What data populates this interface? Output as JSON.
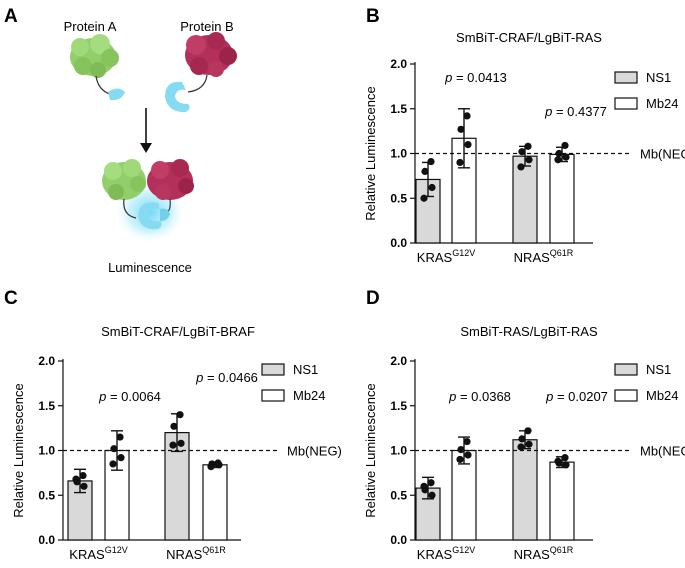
{
  "colors": {
    "ns1_fill": "#d9d9d9",
    "mb24_fill": "#ffffff",
    "protein_a": "#92cf6a",
    "protein_b": "#b3305a",
    "lgbit": "#86daf2",
    "glow": "#59d2f2"
  },
  "schematic": {
    "panel_letter": "A",
    "protein_a_label": "Protein A",
    "protein_b_label": "Protein B",
    "result_label": "Luminescence",
    "icons": [
      "protein-a-icon",
      "protein-b-icon",
      "smbit-tag-icon",
      "lgbit-tag-icon",
      "arrow-down-icon",
      "luminescence-glow-icon"
    ]
  },
  "chart_data": [
    {
      "panel": "B",
      "type": "bar",
      "title": "SmBiT-CRAF/LgBiT-RAS",
      "ylabel": "Relative Luminescence",
      "ylim": [
        0,
        2.0
      ],
      "yticks": [
        "0.0",
        "0.5",
        "1.0",
        "1.5",
        "2.0"
      ],
      "categories": [
        "KRAS",
        "NRAS"
      ],
      "category_superscripts": [
        "G12V",
        "Q61R"
      ],
      "series": [
        {
          "name": "NS1",
          "values": [
            0.71,
            0.97
          ],
          "errors": [
            0.19,
            0.11
          ],
          "points": [
            [
              0.91,
              0.8,
              0.62,
              0.5
            ],
            [
              1.08,
              1.02,
              0.93,
              0.85
            ]
          ]
        },
        {
          "name": "Mb24",
          "values": [
            1.17,
            0.99
          ],
          "errors": [
            0.33,
            0.08
          ],
          "points": [
            [
              1.42,
              1.27,
              1.1,
              0.9
            ],
            [
              1.09,
              1.0,
              0.96,
              0.93
            ]
          ]
        }
      ],
      "pvalues": [
        "0.0413",
        "0.4377"
      ],
      "p_label": "p = ",
      "reference_value": 1.0,
      "reference_label": "Mb(NEG)",
      "legend_position": "top-right"
    },
    {
      "panel": "C",
      "type": "bar",
      "title": "SmBiT-CRAF/LgBiT-BRAF",
      "ylabel": "Relative Luminescence",
      "ylim": [
        0,
        2.0
      ],
      "yticks": [
        "0.0",
        "0.5",
        "1.0",
        "1.5",
        "2.0"
      ],
      "categories": [
        "KRAS",
        "NRAS"
      ],
      "category_superscripts": [
        "G12V",
        "Q61R"
      ],
      "series": [
        {
          "name": "NS1",
          "values": [
            0.66,
            1.2
          ],
          "errors": [
            0.13,
            0.21
          ],
          "points": [
            [
              0.72,
              0.65,
              0.6,
              0.68
            ],
            [
              1.4,
              1.27,
              1.08,
              1.06
            ]
          ]
        },
        {
          "name": "Mb24",
          "values": [
            1.0,
            0.84
          ],
          "errors": [
            0.22,
            0.03
          ],
          "points": [
            [
              1.15,
              1.02,
              0.92,
              0.85
            ],
            [
              0.86,
              0.85,
              0.84,
              0.82
            ]
          ]
        }
      ],
      "pvalues": [
        "0.0064",
        "0.0466"
      ],
      "p_label": "p = ",
      "reference_value": 1.0,
      "reference_label": "Mb(NEG)",
      "legend_position": "top-right"
    },
    {
      "panel": "D",
      "type": "bar",
      "title": "SmBiT-RAS/LgBiT-RAS",
      "ylabel": "Relative Luminescence",
      "ylim": [
        0,
        2.0
      ],
      "yticks": [
        "0.0",
        "0.5",
        "1.0",
        "1.5",
        "2.0"
      ],
      "categories": [
        "KRAS",
        "NRAS"
      ],
      "category_superscripts": [
        "G12V",
        "Q61R"
      ],
      "series": [
        {
          "name": "NS1",
          "values": [
            0.58,
            1.12
          ],
          "errors": [
            0.12,
            0.1
          ],
          "points": [
            [
              0.64,
              0.56,
              0.5,
              0.6
            ],
            [
              1.22,
              1.13,
              1.07,
              1.04
            ]
          ]
        },
        {
          "name": "Mb24",
          "values": [
            1.0,
            0.87
          ],
          "errors": [
            0.15,
            0.06
          ],
          "points": [
            [
              1.1,
              1.01,
              0.95,
              0.9
            ],
            [
              0.92,
              0.86,
              0.84,
              0.88
            ]
          ]
        }
      ],
      "pvalues": [
        "0.0368",
        "0.0207"
      ],
      "p_label": "p = ",
      "reference_value": 1.0,
      "reference_label": "Mb(NEG)",
      "legend_position": "top-right"
    }
  ]
}
